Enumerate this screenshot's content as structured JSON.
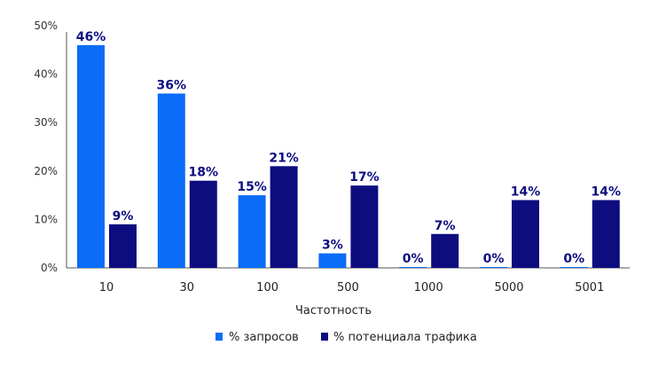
{
  "chart_data": {
    "type": "bar",
    "categories": [
      "10",
      "30",
      "100",
      "500",
      "1000",
      "5000",
      "5001"
    ],
    "series": [
      {
        "name": "% запросов",
        "values": [
          46,
          36,
          15,
          3,
          0,
          0,
          0
        ],
        "color": "#0a6cf8"
      },
      {
        "name": "% потенциала трафика",
        "values": [
          9,
          18,
          21,
          17,
          7,
          14,
          14
        ],
        "color": "#0d0d80"
      }
    ],
    "data_labels": [
      [
        "46%",
        "36%",
        "15%",
        "3%",
        "0%",
        "0%",
        "0%"
      ],
      [
        "9%",
        "18%",
        "21%",
        "17%",
        "7%",
        "14%",
        "14%"
      ]
    ],
    "title": "",
    "xlabel": "Частотность",
    "ylabel": "",
    "ylim": [
      0,
      50
    ],
    "yticks": [
      "0%",
      "10%",
      "20%",
      "30%",
      "40%",
      "50%"
    ],
    "grid": false,
    "legend": "bottom",
    "label_color": "#0d0d80"
  }
}
